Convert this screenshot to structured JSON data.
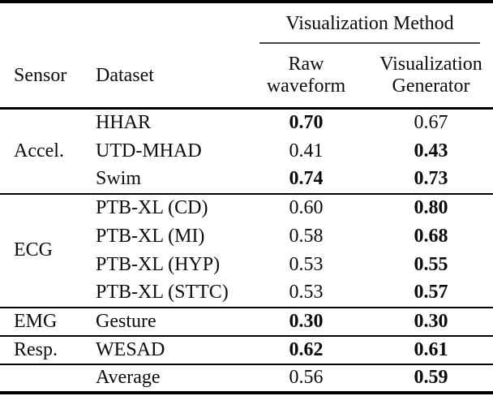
{
  "table": {
    "group_header": "Visualization Method",
    "headers": {
      "sensor": "Sensor",
      "dataset": "Dataset",
      "raw_waveform": "Raw waveform",
      "visualization_generator": "Visualization Generator"
    },
    "sections": [
      {
        "sensor": "Accel.",
        "rows": [
          {
            "dataset": "HHAR",
            "raw": "0.70",
            "raw_bold": true,
            "gen": "0.67",
            "gen_bold": false
          },
          {
            "dataset": "UTD-MHAD",
            "raw": "0.41",
            "raw_bold": false,
            "gen": "0.43",
            "gen_bold": true
          },
          {
            "dataset": "Swim",
            "raw": "0.74",
            "raw_bold": true,
            "gen": "0.73",
            "gen_bold": true
          }
        ]
      },
      {
        "sensor": "ECG",
        "rows": [
          {
            "dataset": "PTB-XL (CD)",
            "raw": "0.60",
            "raw_bold": false,
            "gen": "0.80",
            "gen_bold": true
          },
          {
            "dataset": "PTB-XL (MI)",
            "raw": "0.58",
            "raw_bold": false,
            "gen": "0.68",
            "gen_bold": true
          },
          {
            "dataset": "PTB-XL (HYP)",
            "raw": "0.53",
            "raw_bold": false,
            "gen": "0.55",
            "gen_bold": true
          },
          {
            "dataset": "PTB-XL (STTC)",
            "raw": "0.53",
            "raw_bold": false,
            "gen": "0.57",
            "gen_bold": true
          }
        ]
      },
      {
        "sensor": "EMG",
        "rows": [
          {
            "dataset": "Gesture",
            "raw": "0.30",
            "raw_bold": true,
            "gen": "0.30",
            "gen_bold": true
          }
        ]
      },
      {
        "sensor": "Resp.",
        "rows": [
          {
            "dataset": "WESAD",
            "raw": "0.62",
            "raw_bold": true,
            "gen": "0.61",
            "gen_bold": true
          }
        ]
      }
    ],
    "footer": {
      "label": "Average",
      "raw": "0.56",
      "raw_bold": false,
      "gen": "0.59",
      "gen_bold": true
    }
  },
  "colors": {
    "rule": "#000000",
    "cmidrule": "#4a4a4a",
    "text": "#0c0c0c",
    "background": "#ffffff"
  }
}
